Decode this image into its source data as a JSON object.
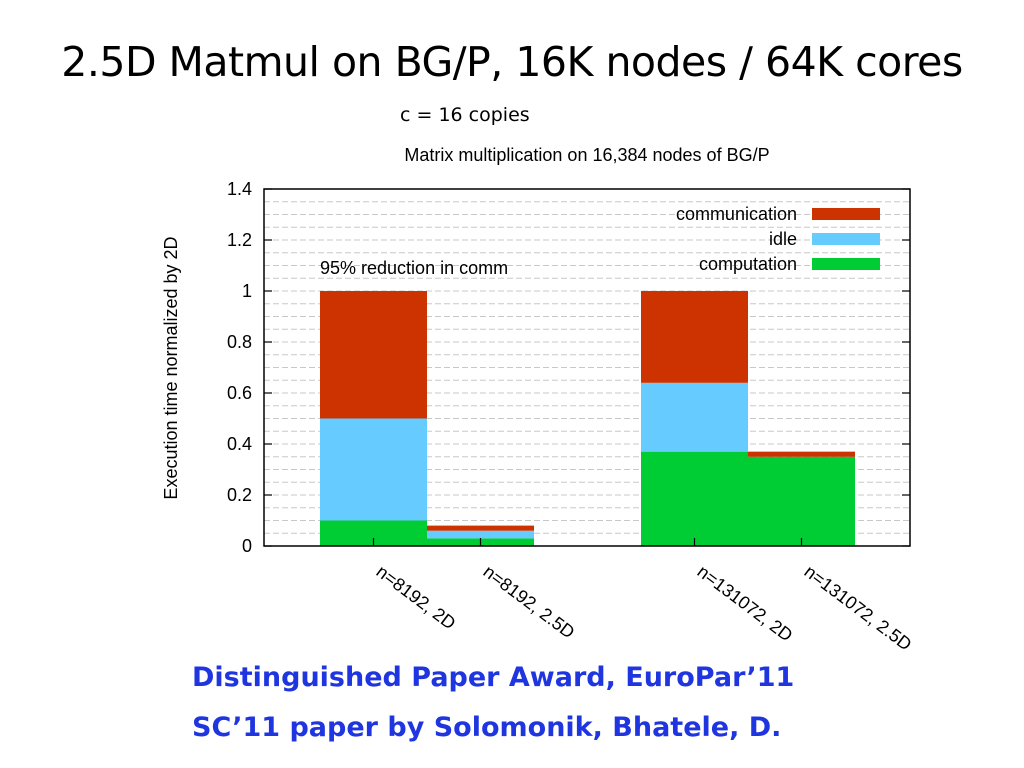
{
  "slide": {
    "title": "2.5D Matmul on BG/P, 16K nodes / 64K cores",
    "subtitle": "c = 16 copies",
    "footer_line1": "Distinguished Paper Award, EuroPar’11",
    "footer_line2": "SC’11 paper by Solomonik, Bhatele, D."
  },
  "chart_data": {
    "type": "bar",
    "stacked": true,
    "title": "Matrix multiplication on 16,384 nodes of BG/P",
    "ylabel": "Execution time normalized by 2D",
    "xlabel": "",
    "ylim": [
      0,
      1.4
    ],
    "yticks": [
      "0",
      "0.2",
      "0.4",
      "0.6",
      "0.8",
      "1",
      "1.2",
      "1.4"
    ],
    "grid": true,
    "legend_position": "top-right",
    "categories": [
      "n=8192, 2D",
      "n=8192, 2.5D",
      "n=131072, 2D",
      "n=131072, 2.5D"
    ],
    "series": [
      {
        "name": "computation",
        "color": "#00cc33",
        "values": [
          0.1,
          0.03,
          0.37,
          0.35
        ]
      },
      {
        "name": "idle",
        "color": "#66ccff",
        "values": [
          0.4,
          0.03,
          0.27,
          0.0
        ]
      },
      {
        "name": "communication",
        "color": "#cc3300",
        "values": [
          0.5,
          0.02,
          0.36,
          0.02
        ]
      }
    ],
    "annotation": "95% reduction in comm"
  }
}
